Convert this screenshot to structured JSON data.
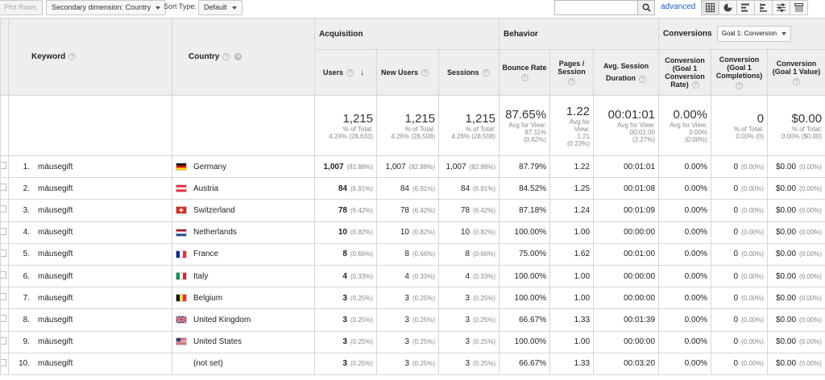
{
  "toolbar": {
    "plot_rows": "Plot Rows",
    "secondary_dimension": "Secondary dimension: Country",
    "sort_type_label": "Sort Type:",
    "sort_type_value": "Default",
    "search_value": "",
    "advanced": "advanced"
  },
  "groups": {
    "acquisition": "Acquisition",
    "behavior": "Behavior",
    "conversions": "Conversions",
    "goal_select": "Goal 1: Conversion"
  },
  "columns": {
    "keyword": "Keyword",
    "country": "Country",
    "users": "Users",
    "new_users": "New Users",
    "sessions": "Sessions",
    "bounce_rate": "Bounce Rate",
    "pages_session_1": "Pages /",
    "pages_session_2": "Session",
    "avg_session_1": "Avg. Session",
    "avg_session_2": "Duration",
    "conv_rate_1": "Conversion",
    "conv_rate_2": "(Goal 1",
    "conv_rate_3": "Conversion",
    "conv_rate_4": "Rate)",
    "completions_1": "Conversion",
    "completions_2": "(Goal 1",
    "completions_3": "Completions)",
    "value_1": "Conversion",
    "value_2": "(Goal 1 Value)"
  },
  "totals": {
    "users": {
      "value": "1,215",
      "sub1": "% of Total:",
      "sub2": "4.24% (28,633)"
    },
    "new_users": {
      "value": "1,215",
      "sub1": "% of Total:",
      "sub2": "4.26% (28,508)"
    },
    "sessions": {
      "value": "1,215",
      "sub1": "% of Total:",
      "sub2": "4.26% (28,508)"
    },
    "bounce_rate": {
      "value": "87.65%",
      "sub1": "Avg for View:",
      "sub2": "87.11%",
      "sub3": "(0.62%)"
    },
    "pages_session": {
      "value": "1.22",
      "sub1": "Avg for",
      "sub2": "View:",
      "sub3": "1.21",
      "sub4": "(0.23%)"
    },
    "avg_duration": {
      "value": "00:01:01",
      "sub1": "Avg for View:",
      "sub2": "00:01:00",
      "sub3": "(2.27%)"
    },
    "conv_rate": {
      "value": "0.00%",
      "sub1": "Avg for View:",
      "sub2": "0.00%",
      "sub3": "(0.00%)"
    },
    "completions": {
      "value": "0",
      "sub1": "% of Total:",
      "sub2": "0.00% (0)"
    },
    "value": {
      "value": "$0.00",
      "sub1": "% of Total:",
      "sub2": "0.00% ($0.00)"
    }
  },
  "rows": [
    {
      "idx": "1.",
      "keyword": "mäusegift",
      "country": "Germany",
      "users": "1,007",
      "users_pct": "(82.88%)",
      "new_users": "1,007",
      "new_users_pct": "(82.88%)",
      "sessions": "1,007",
      "sessions_pct": "(82.88%)",
      "bounce": "87.79%",
      "pages": "1.22",
      "duration": "00:01:01",
      "conv_rate": "0.00%",
      "completions": "0",
      "completions_pct": "(0.00%)",
      "value": "$0.00",
      "value_pct": "(0.00%)"
    },
    {
      "idx": "2.",
      "keyword": "mäusegift",
      "country": "Austria",
      "users": "84",
      "users_pct": "(6.91%)",
      "new_users": "84",
      "new_users_pct": "(6.91%)",
      "sessions": "84",
      "sessions_pct": "(6.91%)",
      "bounce": "84.52%",
      "pages": "1.25",
      "duration": "00:01:08",
      "conv_rate": "0.00%",
      "completions": "0",
      "completions_pct": "(0.00%)",
      "value": "$0.00",
      "value_pct": "(0.00%)"
    },
    {
      "idx": "3.",
      "keyword": "mäusegift",
      "country": "Switzerland",
      "users": "78",
      "users_pct": "(6.42%)",
      "new_users": "78",
      "new_users_pct": "(6.42%)",
      "sessions": "78",
      "sessions_pct": "(6.42%)",
      "bounce": "87.18%",
      "pages": "1.24",
      "duration": "00:01:09",
      "conv_rate": "0.00%",
      "completions": "0",
      "completions_pct": "(0.00%)",
      "value": "$0.00",
      "value_pct": "(0.00%)"
    },
    {
      "idx": "4.",
      "keyword": "mäusegift",
      "country": "Netherlands",
      "users": "10",
      "users_pct": "(0.82%)",
      "new_users": "10",
      "new_users_pct": "(0.82%)",
      "sessions": "10",
      "sessions_pct": "(0.82%)",
      "bounce": "100.00%",
      "pages": "1.00",
      "duration": "00:00:00",
      "conv_rate": "0.00%",
      "completions": "0",
      "completions_pct": "(0.00%)",
      "value": "$0.00",
      "value_pct": "(0.00%)"
    },
    {
      "idx": "5.",
      "keyword": "mäusegift",
      "country": "France",
      "users": "8",
      "users_pct": "(0.66%)",
      "new_users": "8",
      "new_users_pct": "(0.66%)",
      "sessions": "8",
      "sessions_pct": "(0.66%)",
      "bounce": "75.00%",
      "pages": "1.62",
      "duration": "00:01:00",
      "conv_rate": "0.00%",
      "completions": "0",
      "completions_pct": "(0.00%)",
      "value": "$0.00",
      "value_pct": "(0.00%)"
    },
    {
      "idx": "6.",
      "keyword": "mäusegift",
      "country": "Italy",
      "users": "4",
      "users_pct": "(0.33%)",
      "new_users": "4",
      "new_users_pct": "(0.33%)",
      "sessions": "4",
      "sessions_pct": "(0.33%)",
      "bounce": "100.00%",
      "pages": "1.00",
      "duration": "00:00:00",
      "conv_rate": "0.00%",
      "completions": "0",
      "completions_pct": "(0.00%)",
      "value": "$0.00",
      "value_pct": "(0.00%)"
    },
    {
      "idx": "7.",
      "keyword": "mäusegift",
      "country": "Belgium",
      "users": "3",
      "users_pct": "(0.25%)",
      "new_users": "3",
      "new_users_pct": "(0.25%)",
      "sessions": "3",
      "sessions_pct": "(0.25%)",
      "bounce": "100.00%",
      "pages": "1.00",
      "duration": "00:00:00",
      "conv_rate": "0.00%",
      "completions": "0",
      "completions_pct": "(0.00%)",
      "value": "$0.00",
      "value_pct": "(0.00%)"
    },
    {
      "idx": "8.",
      "keyword": "mäusegift",
      "country": "United Kingdom",
      "users": "3",
      "users_pct": "(0.25%)",
      "new_users": "3",
      "new_users_pct": "(0.25%)",
      "sessions": "3",
      "sessions_pct": "(0.25%)",
      "bounce": "66.67%",
      "pages": "1.33",
      "duration": "00:01:39",
      "conv_rate": "0.00%",
      "completions": "0",
      "completions_pct": "(0.00%)",
      "value": "$0.00",
      "value_pct": "(0.00%)"
    },
    {
      "idx": "9.",
      "keyword": "mäusegift",
      "country": "United States",
      "users": "3",
      "users_pct": "(0.25%)",
      "new_users": "3",
      "new_users_pct": "(0.25%)",
      "sessions": "3",
      "sessions_pct": "(0.25%)",
      "bounce": "100.00%",
      "pages": "1.00",
      "duration": "00:00:00",
      "conv_rate": "0.00%",
      "completions": "0",
      "completions_pct": "(0.00%)",
      "value": "$0.00",
      "value_pct": "(0.00%)"
    },
    {
      "idx": "10.",
      "keyword": "mäusegift",
      "country": "(not set)",
      "users": "3",
      "users_pct": "(0.25%)",
      "new_users": "3",
      "new_users_pct": "(0.25%)",
      "sessions": "3",
      "sessions_pct": "(0.25%)",
      "bounce": "66.67%",
      "pages": "1.33",
      "duration": "00:03:20",
      "conv_rate": "0.00%",
      "completions": "0",
      "completions_pct": "(0.00%)",
      "value": "$0.00",
      "value_pct": "(0.00%)"
    }
  ]
}
